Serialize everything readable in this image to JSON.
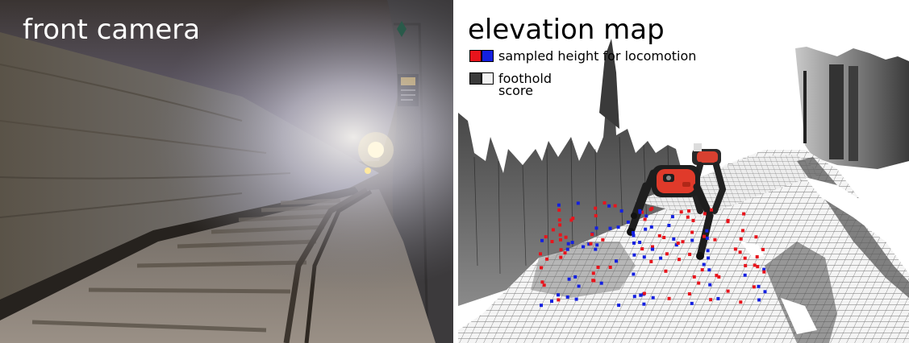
{
  "front_panel": {
    "title": "front camera"
  },
  "elevation_panel": {
    "title": "elevation map",
    "legend": {
      "sampled_height_label": "sampled height for locomotion",
      "sampled_height_colors": [
        "#e8141c",
        "#1420e0"
      ],
      "foothold_label_line1": "foothold",
      "foothold_label_line2": "score",
      "foothold_colors": [
        "#3a3a3a",
        "#f2f2f2"
      ]
    }
  }
}
